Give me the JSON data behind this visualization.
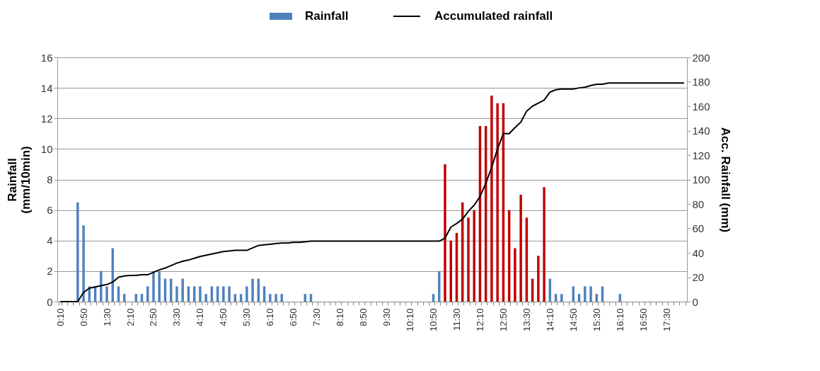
{
  "chart_data": {
    "type": "bar",
    "ylabel": "Rainfall\n(mm/10min)",
    "y2label": "Acc. Rainfall (mm)",
    "categories": [
      "0:10",
      null,
      null,
      null,
      "0:50",
      null,
      null,
      null,
      "1:30",
      null,
      null,
      null,
      "2:10",
      null,
      null,
      null,
      "2:50",
      null,
      null,
      null,
      "3:30",
      null,
      null,
      null,
      "4:10",
      null,
      null,
      null,
      "4:50",
      null,
      null,
      null,
      "5:30",
      null,
      null,
      null,
      "6:10",
      null,
      null,
      null,
      "6:50",
      null,
      null,
      null,
      "7:30",
      null,
      null,
      null,
      "8:10",
      null,
      null,
      null,
      "8:50",
      null,
      null,
      null,
      "9:30",
      null,
      null,
      null,
      "10:10",
      null,
      null,
      null,
      "10:50",
      null,
      null,
      null,
      "11:30",
      null,
      null,
      null,
      "12:10",
      null,
      null,
      null,
      "12:50",
      null,
      null,
      null,
      "13:30",
      null,
      null,
      null,
      "14:10",
      null,
      null,
      null,
      "14:50",
      null,
      null,
      null,
      "15:30",
      null,
      null,
      null,
      "16:10",
      null,
      null,
      null,
      "16:50",
      null,
      null,
      null,
      "17:30",
      null,
      null,
      null
    ],
    "series": [
      {
        "name": "Rainfall",
        "color": "#4f81bd",
        "colors": [
          "#4f81bd",
          "#4f81bd",
          "#4f81bd",
          "#4f81bd",
          "#4f81bd",
          "#4f81bd",
          "#4f81bd",
          "#4f81bd",
          "#4f81bd",
          "#4f81bd",
          "#4f81bd",
          "#4f81bd",
          "#4f81bd",
          "#4f81bd",
          "#4f81bd",
          "#4f81bd",
          "#4f81bd",
          "#4f81bd",
          "#4f81bd",
          "#4f81bd",
          "#4f81bd",
          "#4f81bd",
          "#4f81bd",
          "#4f81bd",
          "#4f81bd",
          "#4f81bd",
          "#4f81bd",
          "#4f81bd",
          "#4f81bd",
          "#4f81bd",
          "#4f81bd",
          "#4f81bd",
          "#4f81bd",
          "#4f81bd",
          "#4f81bd",
          "#4f81bd",
          "#4f81bd",
          "#4f81bd",
          "#4f81bd",
          "#4f81bd",
          "#4f81bd",
          "#4f81bd",
          "#4f81bd",
          "#4f81bd",
          "#4f81bd",
          "#4f81bd",
          "#4f81bd",
          "#4f81bd",
          "#4f81bd",
          "#4f81bd",
          "#4f81bd",
          "#4f81bd",
          "#4f81bd",
          "#4f81bd",
          "#4f81bd",
          "#4f81bd",
          "#4f81bd",
          "#4f81bd",
          "#4f81bd",
          "#4f81bd",
          "#4f81bd",
          "#4f81bd",
          "#4f81bd",
          "#4f81bd",
          "#4f81bd",
          "#4f81bd",
          "#c00000",
          "#c00000",
          "#c00000",
          "#c00000",
          "#c00000",
          "#c00000",
          "#c00000",
          "#c00000",
          "#c00000",
          "#c00000",
          "#c00000",
          "#c00000",
          "#c00000",
          "#c00000",
          "#c00000",
          "#c00000",
          "#c00000",
          "#c00000",
          "#4f81bd",
          "#4f81bd",
          "#4f81bd",
          "#4f81bd",
          "#4f81bd",
          "#4f81bd",
          "#4f81bd",
          "#4f81bd",
          "#4f81bd",
          "#4f81bd",
          "#4f81bd",
          "#4f81bd",
          "#4f81bd",
          "#4f81bd",
          "#4f81bd",
          "#4f81bd",
          "#4f81bd",
          "#4f81bd",
          "#4f81bd",
          "#4f81bd",
          "#4f81bd",
          "#4f81bd",
          "#4f81bd",
          "#4f81bd"
        ],
        "values": [
          0,
          0,
          0,
          6.5,
          5,
          1,
          1,
          2,
          1,
          3.5,
          1,
          0.5,
          0,
          0.5,
          0.5,
          1,
          2,
          2,
          1.5,
          1.5,
          1,
          1.5,
          1,
          1,
          1,
          0.5,
          1,
          1,
          1,
          1,
          0.5,
          0.5,
          1,
          1.5,
          1.5,
          1,
          0.5,
          0.5,
          0.5,
          0,
          0,
          0,
          0.5,
          0.5,
          0,
          0,
          0,
          0,
          0,
          0,
          0,
          0,
          0,
          0,
          0,
          0,
          0,
          0,
          0,
          0,
          0,
          0,
          0,
          0,
          0.5,
          2,
          9,
          4,
          4.5,
          6.5,
          5.5,
          6,
          11.5,
          11.5,
          13.5,
          13,
          13,
          6,
          3.5,
          7,
          5.5,
          1.5,
          3,
          7.5,
          1.5,
          0.5,
          0.5,
          0,
          1,
          0.5,
          1,
          1,
          0.5,
          1,
          0,
          0,
          0.5,
          0,
          0,
          0,
          0,
          0,
          0,
          0,
          0,
          0,
          0,
          0
        ]
      },
      {
        "name": "Accumulated rainfall",
        "type": "line",
        "axis": "y2",
        "color": "#000000",
        "values": [
          0,
          0,
          0,
          0,
          7.5,
          11,
          12,
          13,
          14,
          16,
          20,
          21,
          21.5,
          21.5,
          22,
          22,
          24,
          26,
          27.5,
          29.5,
          31.5,
          33,
          34,
          35.5,
          37,
          38,
          39,
          40,
          41,
          41.5,
          42,
          42,
          42,
          44,
          46,
          46.5,
          47,
          47.5,
          48,
          48,
          48.5,
          48.5,
          49,
          49.5,
          49.5,
          49.5,
          49.5,
          49.5,
          49.5,
          49.5,
          49.5,
          49.5,
          49.5,
          49.5,
          49.5,
          49.5,
          49.5,
          49.5,
          49.5,
          49.5,
          49.5,
          49.5,
          49.5,
          49.5,
          49.5,
          49.5,
          52,
          61,
          64,
          67.5,
          74,
          79,
          86,
          97,
          110,
          125,
          137.5,
          137.5,
          142.5,
          147,
          156,
          160,
          162.5,
          165,
          171.5,
          173.5,
          174,
          174,
          174,
          175,
          175.5,
          177,
          178,
          178,
          179,
          179,
          179,
          179,
          179,
          179,
          179,
          179,
          179,
          179,
          179,
          179,
          179,
          179
        ]
      }
    ],
    "ylim": [
      0,
      16
    ],
    "yticks": [
      0,
      2,
      4,
      6,
      8,
      10,
      12,
      14,
      16
    ],
    "y2lim": [
      0,
      200
    ],
    "y2ticks": [
      0,
      20,
      40,
      60,
      80,
      100,
      120,
      140,
      160,
      180,
      200
    ],
    "grid": "y",
    "legend": "top"
  }
}
